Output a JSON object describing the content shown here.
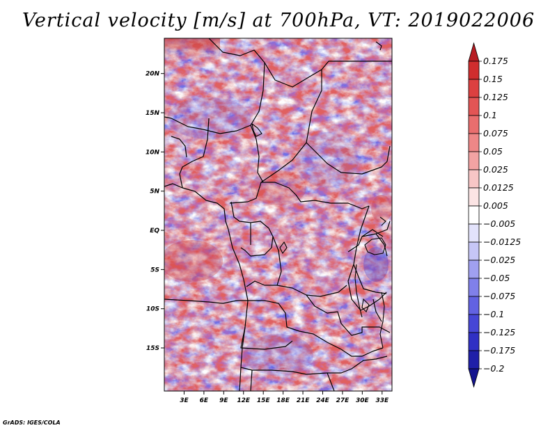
{
  "title": "Vertical velocity [m/s] at 700hPa, VT: 2019022006",
  "credit": "GrADS: IGES/COLA",
  "map": {
    "variable": "Vertical velocity",
    "units": "m/s",
    "level": "700hPa",
    "valid_time": "2019022006",
    "lon_range": [
      0,
      34.5
    ],
    "lat_range": [
      -20.5,
      24.5
    ],
    "lon_ticks": [
      {
        "value": 3,
        "label": "3E"
      },
      {
        "value": 6,
        "label": "6E"
      },
      {
        "value": 9,
        "label": "9E"
      },
      {
        "value": 12,
        "label": "12E"
      },
      {
        "value": 15,
        "label": "15E"
      },
      {
        "value": 18,
        "label": "18E"
      },
      {
        "value": 21,
        "label": "21E"
      },
      {
        "value": 24,
        "label": "24E"
      },
      {
        "value": 27,
        "label": "27E"
      },
      {
        "value": 30,
        "label": "30E"
      },
      {
        "value": 33,
        "label": "33E"
      }
    ],
    "lat_ticks": [
      {
        "value": 20,
        "label": "20N"
      },
      {
        "value": 15,
        "label": "15N"
      },
      {
        "value": 10,
        "label": "10N"
      },
      {
        "value": 5,
        "label": "5N"
      },
      {
        "value": 0,
        "label": "EQ"
      },
      {
        "value": -5,
        "label": "5S"
      },
      {
        "value": -10,
        "label": "10S"
      },
      {
        "value": -15,
        "label": "15S"
      }
    ]
  },
  "colorbar": {
    "levels": [
      "0.175",
      "0.15",
      "0.125",
      "0.1",
      "0.075",
      "0.05",
      "0.025",
      "0.0125",
      "0.005",
      "-0.005",
      "-0.0125",
      "-0.025",
      "-0.05",
      "-0.075",
      "-0.1",
      "-0.125",
      "-0.175",
      "-0.2"
    ],
    "colors": [
      "#b81c22",
      "#d02d2e",
      "#dc4040",
      "#e35555",
      "#e96e6e",
      "#ee8787",
      "#f2a3a3",
      "#f7c6c6",
      "#fbe4e4",
      "#ffffff",
      "#e3e3fb",
      "#c6c6f6",
      "#a0a0f0",
      "#8080ea",
      "#6262e2",
      "#4646d6",
      "#3030c4",
      "#1f1fa8",
      "#14148f"
    ]
  }
}
